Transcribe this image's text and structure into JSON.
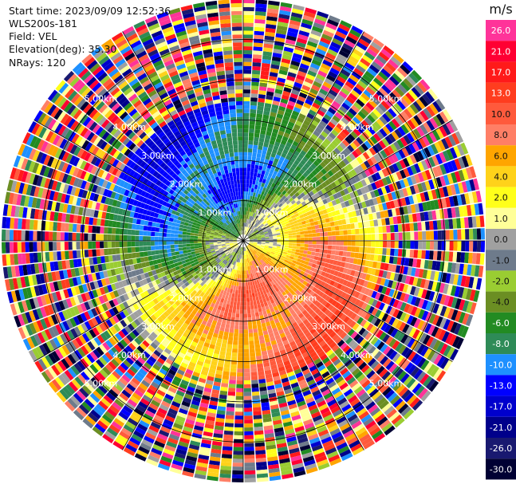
{
  "header": {
    "start_time": "Start time: 2023/09/09 12:52:36",
    "instrument": "WLS200s-181",
    "field": "Field: VEL",
    "elevation": "Elevation(deg): 35.30",
    "nrays": "NRays: 120"
  },
  "colorbar": {
    "unit": "m/s",
    "levels": [
      {
        "label": "26.0",
        "color": "#ff3399"
      },
      {
        "label": "21.0",
        "color": "#ff0033"
      },
      {
        "label": "17.0",
        "color": "#ff1a1a"
      },
      {
        "label": "13.0",
        "color": "#ff3d1f"
      },
      {
        "label": "10.0",
        "color": "#ff5a3c"
      },
      {
        "label": "8.0",
        "color": "#ff7f66"
      },
      {
        "label": "6.0",
        "color": "#ffa500"
      },
      {
        "label": "4.0",
        "color": "#ffd21a"
      },
      {
        "label": "2.0",
        "color": "#ffff1a"
      },
      {
        "label": "1.0",
        "color": "#ffff99"
      },
      {
        "label": "0.0",
        "color": "#a0a0a0"
      },
      {
        "label": "-1.0",
        "color": "#6e7b8b"
      },
      {
        "label": "-2.0",
        "color": "#9acd32"
      },
      {
        "label": "-4.0",
        "color": "#6b8e23"
      },
      {
        "label": "-6.0",
        "color": "#228b22"
      },
      {
        "label": "-8.0",
        "color": "#2e8b57"
      },
      {
        "label": "-10.0",
        "color": "#1e90ff"
      },
      {
        "label": "-13.0",
        "color": "#0000ff"
      },
      {
        "label": "-17.0",
        "color": "#0000cd"
      },
      {
        "label": "-21.0",
        "color": "#00008b"
      },
      {
        "label": "-26.0",
        "color": "#191970"
      },
      {
        "label": "-30.0",
        "color": "#000033"
      }
    ]
  },
  "chart_data": {
    "type": "heatmap",
    "projection": "polar-ppi",
    "field": "VEL",
    "n_rays": 120,
    "max_range_km": 6.0,
    "range_rings_km": [
      1.0,
      2.0,
      3.0,
      4.0,
      5.0
    ],
    "ring_labels": [
      "1.00km",
      "2.00km",
      "3.00km",
      "4.00km",
      "5.00km"
    ],
    "spoke_angles_deg": [
      0,
      30,
      60,
      90,
      120,
      150,
      180,
      210,
      240,
      270,
      300,
      330
    ],
    "valid_data_range_km": 3.5
  }
}
